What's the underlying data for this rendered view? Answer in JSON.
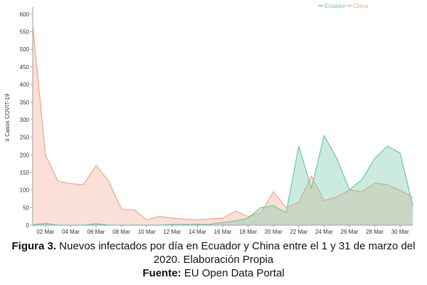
{
  "colors": {
    "ecuador": "#6cc6a3",
    "china": "#f2a58a",
    "axis": "#999999"
  },
  "caption": {
    "figure_label": "Figura 3.",
    "figure_text": " Nuevos infectados por día en Ecuador y China entre el 1 y 31 de marzo del 2020. Elaboración Propia",
    "source_label": "Fuente:",
    "source_text": " EU Open Data Portal"
  },
  "chart_data": {
    "type": "area",
    "ylabel": "# Casos COVIT-19",
    "ylim": [
      0,
      620
    ],
    "yticks": [
      0,
      50,
      100,
      150,
      200,
      250,
      300,
      350,
      400,
      450,
      500,
      550,
      600
    ],
    "xticks": [
      "02 Mar",
      "04 Mar",
      "06 Mar",
      "08 Mar",
      "10 Mar",
      "12 Mar",
      "14 Mar",
      "16 Mar",
      "18 Mar",
      "20 Mar",
      "22 Mar",
      "24 Mar",
      "26 Mar",
      "28 Mar",
      "30 Mar"
    ],
    "x": [
      1,
      2,
      3,
      4,
      5,
      6,
      7,
      8,
      9,
      10,
      11,
      12,
      13,
      14,
      15,
      16,
      17,
      18,
      19,
      20,
      21,
      22,
      23,
      24,
      25,
      26,
      27,
      28,
      29,
      30,
      31
    ],
    "legend_position": "top-right",
    "series": [
      {
        "name": "Ecuador",
        "values": [
          1,
          5,
          0,
          0,
          0,
          4,
          0,
          0,
          0,
          0,
          0,
          2,
          2,
          2,
          2,
          8,
          12,
          20,
          50,
          55,
          35,
          225,
          105,
          255,
          190,
          100,
          130,
          190,
          225,
          205,
          55
        ]
      },
      {
        "name": "China",
        "values": [
          570,
          200,
          125,
          118,
          115,
          170,
          125,
          45,
          44,
          15,
          25,
          20,
          17,
          15,
          18,
          20,
          40,
          25,
          35,
          95,
          50,
          65,
          140,
          70,
          80,
          100,
          95,
          120,
          115,
          100,
          80
        ]
      }
    ]
  }
}
